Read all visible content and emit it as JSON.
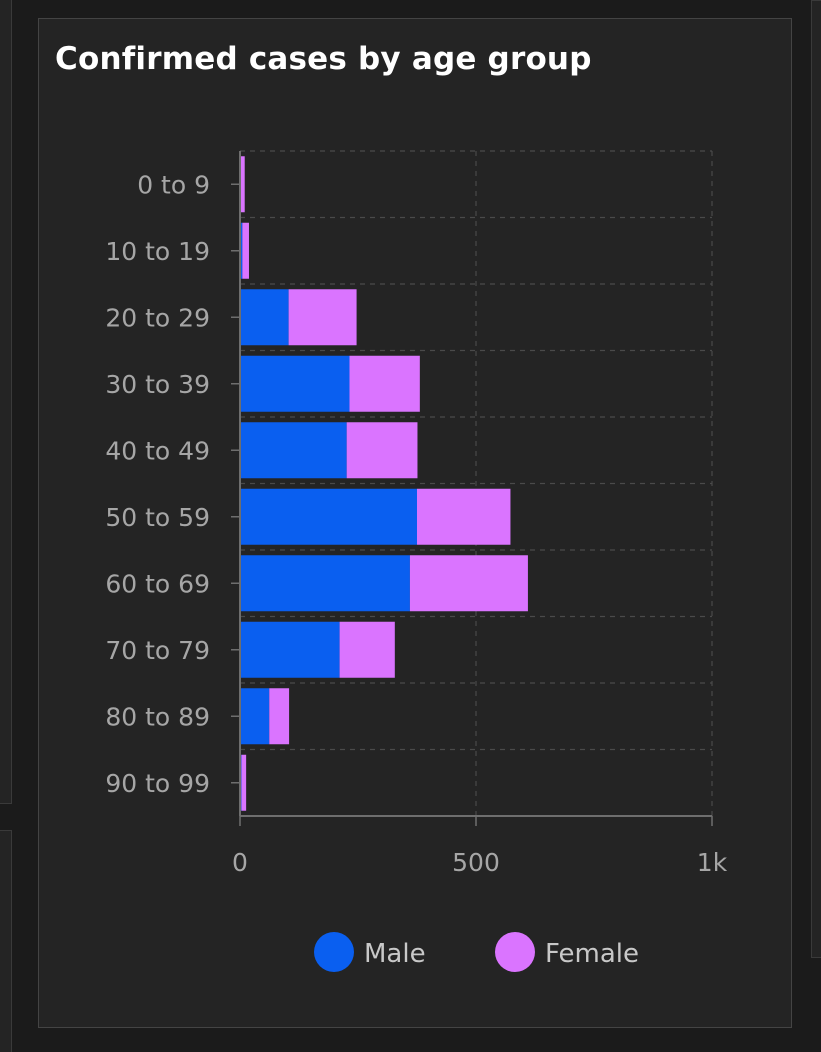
{
  "card": {
    "title": "Confirmed cases by age group"
  },
  "colors": {
    "male": "#0a5ff0",
    "female": "#da74ff",
    "background": "#242424",
    "grid": "#4a4a4a",
    "axis": "#6e6e6e",
    "text": "#a6a6a6"
  },
  "chart_data": {
    "type": "bar",
    "orientation": "horizontal",
    "stacked": true,
    "title": "Confirmed cases by age group",
    "xlabel": "",
    "ylabel": "",
    "categories": [
      "0 to 9",
      "10 to 19",
      "20 to 29",
      "30 to 39",
      "40 to 49",
      "50 to 59",
      "60 to 69",
      "70 to 79",
      "80 to 89",
      "90 to 99"
    ],
    "series": [
      {
        "name": "Male",
        "color": "#0a5ff0",
        "values": [
          2,
          5,
          103,
          232,
          226,
          375,
          360,
          211,
          62,
          3
        ]
      },
      {
        "name": "Female",
        "color": "#da74ff",
        "values": [
          8,
          14,
          144,
          149,
          150,
          198,
          250,
          117,
          42,
          10
        ]
      }
    ],
    "xlim": [
      0,
      1000
    ],
    "xticks": [
      0,
      500,
      1000
    ],
    "xtick_labels": [
      "0",
      "500",
      "1k"
    ],
    "grid": true,
    "legend": "bottom"
  }
}
